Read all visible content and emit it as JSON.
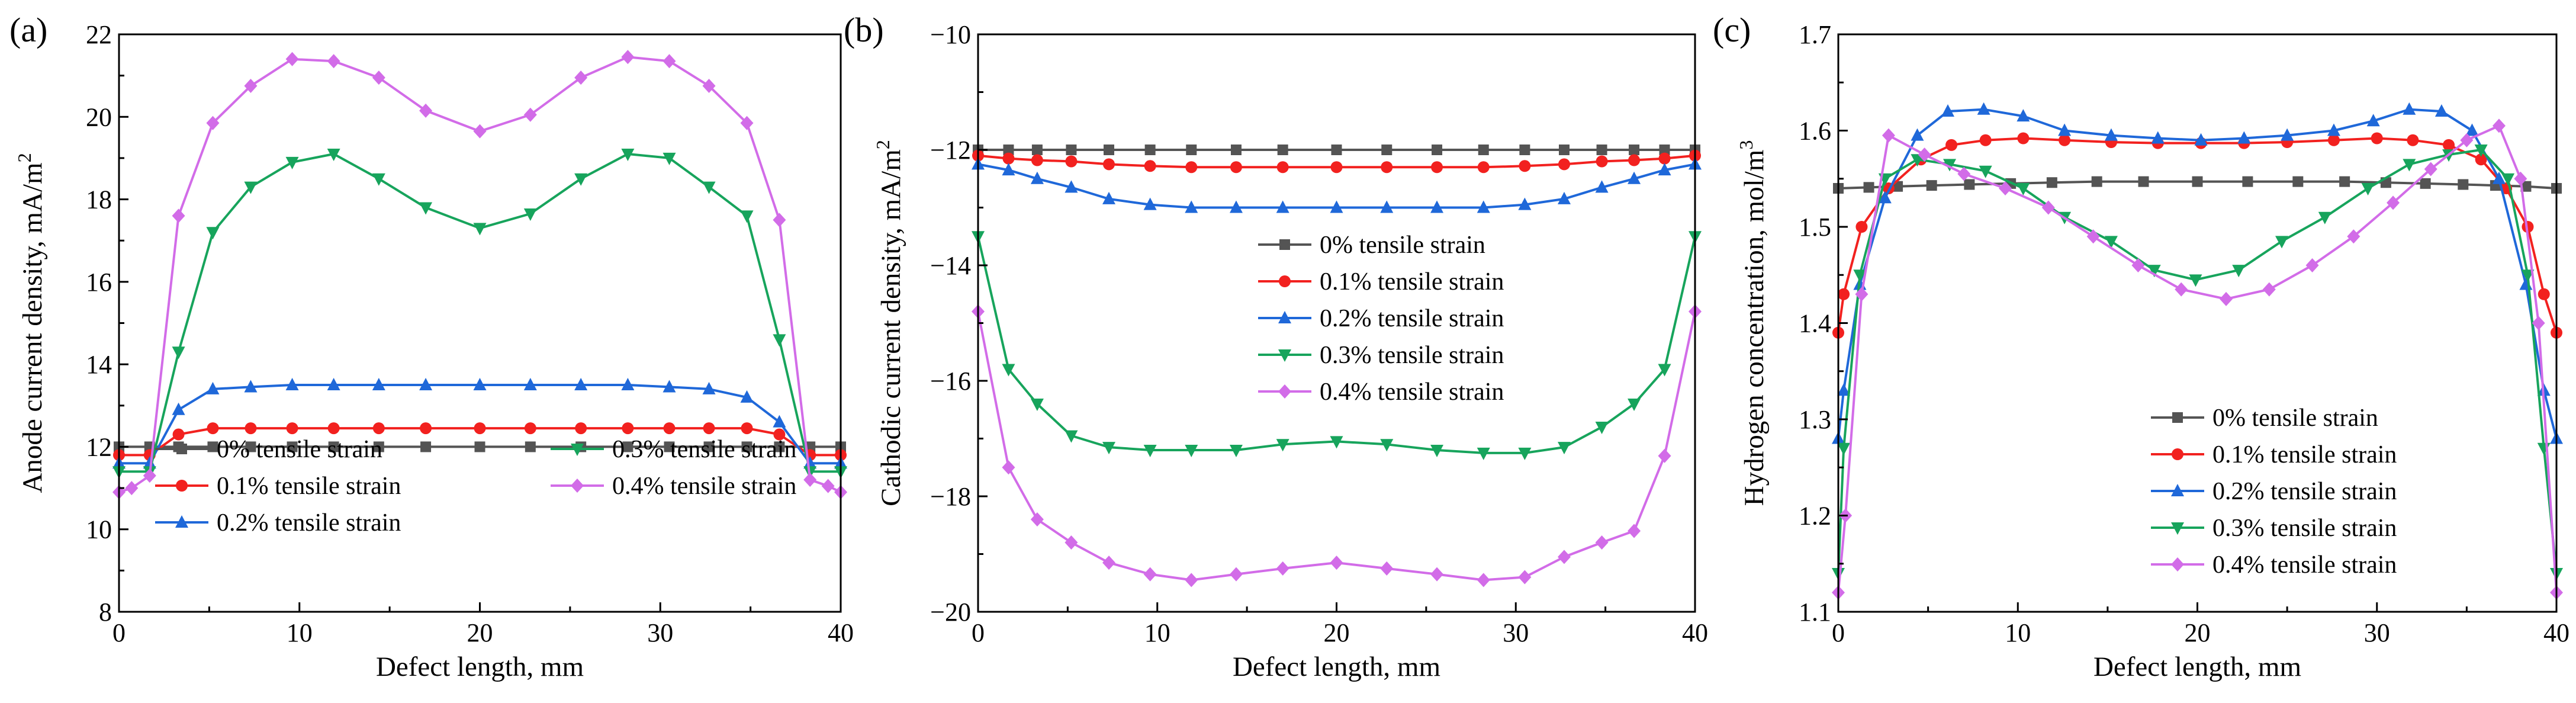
{
  "colors": {
    "0": "#545454",
    "0.1": "#f2211f",
    "0.2": "#1f68d9",
    "0.3": "#17a45c",
    "0.4": "#d26ce8"
  },
  "chart_data": [
    {
      "type": "line",
      "panel_label": "(a)",
      "xlabel": "Defect length, mm",
      "ylabel": "Anode current density, mA/m",
      "ylabel_sup": "2",
      "xlim": [
        0,
        40
      ],
      "ylim": [
        8,
        22
      ],
      "xticks": [
        0,
        10,
        20,
        30,
        40
      ],
      "yticks": [
        8,
        10,
        12,
        14,
        16,
        18,
        20,
        22
      ],
      "legend_position": "bottom",
      "series": [
        {
          "name": "0% tensile strain",
          "key": "0",
          "marker": "square",
          "x": [
            0,
            1.7,
            3.3,
            5.2,
            7.3,
            9.6,
            11.9,
            14.4,
            17,
            20,
            22.8,
            25.6,
            28.2,
            30.5,
            32.7,
            34.8,
            36.6,
            38.3,
            40
          ],
          "y": [
            12,
            12,
            12,
            12,
            12,
            12,
            12,
            12,
            12,
            12,
            12,
            12,
            12,
            12,
            12,
            12,
            12,
            12,
            12
          ]
        },
        {
          "name": "0.1% tensile strain",
          "key": "0.1",
          "marker": "circle",
          "x": [
            0,
            1.7,
            3.3,
            5.2,
            7.3,
            9.6,
            11.9,
            14.4,
            17,
            20,
            22.8,
            25.6,
            28.2,
            30.5,
            32.7,
            34.8,
            36.6,
            38.3,
            40
          ],
          "y": [
            11.8,
            11.8,
            12.3,
            12.45,
            12.45,
            12.45,
            12.45,
            12.45,
            12.45,
            12.45,
            12.45,
            12.45,
            12.45,
            12.45,
            12.45,
            12.45,
            12.3,
            11.8,
            11.8
          ]
        },
        {
          "name": "0.2% tensile strain",
          "key": "0.2",
          "marker": "triangle-up",
          "x": [
            0,
            1.7,
            3.3,
            5.2,
            7.3,
            9.6,
            11.9,
            14.4,
            17,
            20,
            22.8,
            25.6,
            28.2,
            30.5,
            32.7,
            34.8,
            36.6,
            38.3,
            40
          ],
          "y": [
            11.6,
            11.6,
            12.9,
            13.4,
            13.45,
            13.5,
            13.5,
            13.5,
            13.5,
            13.5,
            13.5,
            13.5,
            13.5,
            13.45,
            13.4,
            13.2,
            12.6,
            11.6,
            11.6
          ]
        },
        {
          "name": "0.3% tensile strain",
          "key": "0.3",
          "marker": "triangle-down",
          "x": [
            0,
            1.7,
            3.3,
            5.2,
            7.3,
            9.6,
            11.9,
            14.4,
            17,
            20,
            22.8,
            25.6,
            28.2,
            30.5,
            32.7,
            34.8,
            36.6,
            38.3,
            40
          ],
          "y": [
            11.4,
            11.4,
            14.3,
            17.2,
            18.3,
            18.9,
            19.1,
            18.5,
            17.8,
            17.3,
            17.65,
            18.5,
            19.1,
            19.0,
            18.3,
            17.6,
            14.6,
            11.4,
            11.4
          ]
        },
        {
          "name": "0.4% tensile strain",
          "key": "0.4",
          "marker": "diamond",
          "x": [
            0,
            0.7,
            1.7,
            3.3,
            5.2,
            7.3,
            9.6,
            11.9,
            14.4,
            17,
            20,
            22.8,
            25.6,
            28.2,
            30.5,
            32.7,
            34.8,
            36.6,
            38.3,
            39.3,
            40
          ],
          "y": [
            10.9,
            11.0,
            11.3,
            17.6,
            19.85,
            20.75,
            21.4,
            21.35,
            20.95,
            20.15,
            19.65,
            20.05,
            20.95,
            21.45,
            21.35,
            20.75,
            19.85,
            17.5,
            11.2,
            11.05,
            10.9
          ]
        }
      ]
    },
    {
      "type": "line",
      "panel_label": "(b)",
      "xlabel": "Defect length, mm",
      "ylabel": "Cathodic current density, mA/m",
      "ylabel_sup": "2",
      "xlim": [
        0,
        40
      ],
      "ylim": [
        -20,
        -10
      ],
      "xticks": [
        0,
        10,
        20,
        30,
        40
      ],
      "yticks": [
        -20,
        -18,
        -16,
        -14,
        -12,
        -10
      ],
      "ytick_labels": [
        "−20",
        "−18",
        "−16",
        "−14",
        "−12",
        "−10"
      ],
      "legend_position": "center",
      "series": [
        {
          "name": "0% tensile strain",
          "key": "0",
          "marker": "square",
          "x": [
            0,
            1.7,
            3.3,
            5.2,
            7.3,
            9.6,
            11.9,
            14.4,
            17,
            20,
            22.8,
            25.6,
            28.2,
            30.5,
            32.7,
            34.8,
            36.6,
            38.3,
            40
          ],
          "y": [
            -12,
            -12,
            -12,
            -12,
            -12,
            -12,
            -12,
            -12,
            -12,
            -12,
            -12,
            -12,
            -12,
            -12,
            -12,
            -12,
            -12,
            -12,
            -12
          ]
        },
        {
          "name": "0.1% tensile strain",
          "key": "0.1",
          "marker": "circle",
          "x": [
            0,
            1.7,
            3.3,
            5.2,
            7.3,
            9.6,
            11.9,
            14.4,
            17,
            20,
            22.8,
            25.6,
            28.2,
            30.5,
            32.7,
            34.8,
            36.6,
            38.3,
            40
          ],
          "y": [
            -12.1,
            -12.15,
            -12.18,
            -12.2,
            -12.25,
            -12.28,
            -12.3,
            -12.3,
            -12.3,
            -12.3,
            -12.3,
            -12.3,
            -12.3,
            -12.28,
            -12.25,
            -12.2,
            -12.18,
            -12.15,
            -12.1
          ]
        },
        {
          "name": "0.2% tensile strain",
          "key": "0.2",
          "marker": "triangle-up",
          "x": [
            0,
            1.7,
            3.3,
            5.2,
            7.3,
            9.6,
            11.9,
            14.4,
            17,
            20,
            22.8,
            25.6,
            28.2,
            30.5,
            32.7,
            34.8,
            36.6,
            38.3,
            40
          ],
          "y": [
            -12.25,
            -12.35,
            -12.5,
            -12.65,
            -12.85,
            -12.95,
            -13,
            -13,
            -13,
            -13,
            -13,
            -13,
            -13,
            -12.95,
            -12.85,
            -12.65,
            -12.5,
            -12.35,
            -12.25
          ]
        },
        {
          "name": "0.3% tensile strain",
          "key": "0.3",
          "marker": "triangle-down",
          "x": [
            0,
            1.7,
            3.3,
            5.2,
            7.3,
            9.6,
            11.9,
            14.4,
            17,
            20,
            22.8,
            25.6,
            28.2,
            30.5,
            32.7,
            34.8,
            36.6,
            38.3,
            40
          ],
          "y": [
            -13.5,
            -15.8,
            -16.4,
            -16.95,
            -17.15,
            -17.2,
            -17.2,
            -17.2,
            -17.1,
            -17.05,
            -17.1,
            -17.2,
            -17.25,
            -17.25,
            -17.15,
            -16.8,
            -16.4,
            -15.8,
            -13.5
          ]
        },
        {
          "name": "0.4% tensile strain",
          "key": "0.4",
          "marker": "diamond",
          "x": [
            0,
            1.7,
            3.3,
            5.2,
            7.3,
            9.6,
            11.9,
            14.4,
            17,
            20,
            22.8,
            25.6,
            28.2,
            30.5,
            32.7,
            34.8,
            36.6,
            38.3,
            40
          ],
          "y": [
            -14.8,
            -17.5,
            -18.4,
            -18.8,
            -19.15,
            -19.35,
            -19.45,
            -19.35,
            -19.25,
            -19.15,
            -19.25,
            -19.35,
            -19.45,
            -19.4,
            -19.05,
            -18.8,
            -18.6,
            -17.3,
            -14.8
          ]
        }
      ]
    },
    {
      "type": "line",
      "panel_label": "(c)",
      "xlabel": "Defect length, mm",
      "ylabel": "Hydrogen concentration, mol/m",
      "ylabel_sup": "3",
      "xlim": [
        0,
        40
      ],
      "ylim": [
        1.1,
        1.7
      ],
      "xticks": [
        0,
        10,
        20,
        30,
        40
      ],
      "yticks": [
        1.1,
        1.2,
        1.3,
        1.4,
        1.5,
        1.6,
        1.7
      ],
      "ytick_labels": [
        "1.1",
        "1.2",
        "1.3",
        "1.4",
        "1.5",
        "1.6",
        "1.7"
      ],
      "legend_position": "bottom-right",
      "series": [
        {
          "name": "0% tensile strain",
          "key": "0",
          "marker": "square",
          "x": [
            0,
            1.7,
            3.3,
            5.2,
            7.3,
            9.6,
            11.9,
            14.4,
            17,
            20,
            22.8,
            25.6,
            28.2,
            30.5,
            32.7,
            34.8,
            36.6,
            38.3,
            40
          ],
          "y": [
            1.54,
            1.541,
            1.542,
            1.543,
            1.544,
            1.545,
            1.546,
            1.547,
            1.547,
            1.547,
            1.547,
            1.547,
            1.547,
            1.546,
            1.545,
            1.544,
            1.543,
            1.542,
            1.54
          ]
        },
        {
          "name": "0.1% tensile strain",
          "key": "0.1",
          "marker": "circle",
          "x": [
            0,
            0.3,
            1.3,
            2.8,
            4.6,
            6.3,
            8.2,
            10.3,
            12.6,
            15.2,
            17.8,
            20.2,
            22.6,
            25.0,
            27.6,
            30.0,
            32.0,
            34.0,
            35.8,
            37.2,
            38.4,
            39.3,
            40
          ],
          "y": [
            1.39,
            1.43,
            1.5,
            1.54,
            1.57,
            1.585,
            1.59,
            1.592,
            1.59,
            1.588,
            1.587,
            1.587,
            1.587,
            1.588,
            1.59,
            1.592,
            1.59,
            1.585,
            1.57,
            1.54,
            1.5,
            1.43,
            1.39
          ]
        },
        {
          "name": "0.2% tensile strain",
          "key": "0.2",
          "marker": "triangle-up",
          "x": [
            0,
            0.3,
            1.2,
            2.6,
            4.4,
            6.1,
            8.1,
            10.3,
            12.6,
            15.2,
            17.8,
            20.2,
            22.6,
            25.0,
            27.6,
            29.8,
            31.8,
            33.6,
            35.3,
            36.8,
            38.3,
            39.3,
            40
          ],
          "y": [
            1.28,
            1.33,
            1.44,
            1.53,
            1.595,
            1.62,
            1.622,
            1.615,
            1.6,
            1.595,
            1.592,
            1.59,
            1.592,
            1.595,
            1.6,
            1.61,
            1.622,
            1.62,
            1.6,
            1.55,
            1.44,
            1.33,
            1.28
          ]
        },
        {
          "name": "0.3% tensile strain",
          "key": "0.3",
          "marker": "triangle-down",
          "x": [
            0,
            0.3,
            1.2,
            2.6,
            4.4,
            6.2,
            8.2,
            10.3,
            12.6,
            15.2,
            17.6,
            19.9,
            22.3,
            24.7,
            27.1,
            29.5,
            31.8,
            34.0,
            35.8,
            37.3,
            38.4,
            39.3,
            40
          ],
          "y": [
            1.14,
            1.27,
            1.45,
            1.55,
            1.57,
            1.565,
            1.558,
            1.54,
            1.51,
            1.485,
            1.455,
            1.445,
            1.455,
            1.485,
            1.51,
            1.54,
            1.565,
            1.575,
            1.58,
            1.55,
            1.45,
            1.27,
            1.14
          ]
        },
        {
          "name": "0.4% tensile strain",
          "key": "0.4",
          "marker": "diamond",
          "x": [
            0,
            0.4,
            1.3,
            2.8,
            4.8,
            7.0,
            9.3,
            11.7,
            14.2,
            16.7,
            19.1,
            21.6,
            24.0,
            26.4,
            28.7,
            30.9,
            33.0,
            35.0,
            36.8,
            38.0,
            39.0,
            40
          ],
          "y": [
            1.12,
            1.2,
            1.43,
            1.595,
            1.575,
            1.555,
            1.54,
            1.52,
            1.49,
            1.46,
            1.435,
            1.425,
            1.435,
            1.46,
            1.49,
            1.525,
            1.56,
            1.59,
            1.605,
            1.55,
            1.4,
            1.12
          ]
        }
      ]
    }
  ]
}
